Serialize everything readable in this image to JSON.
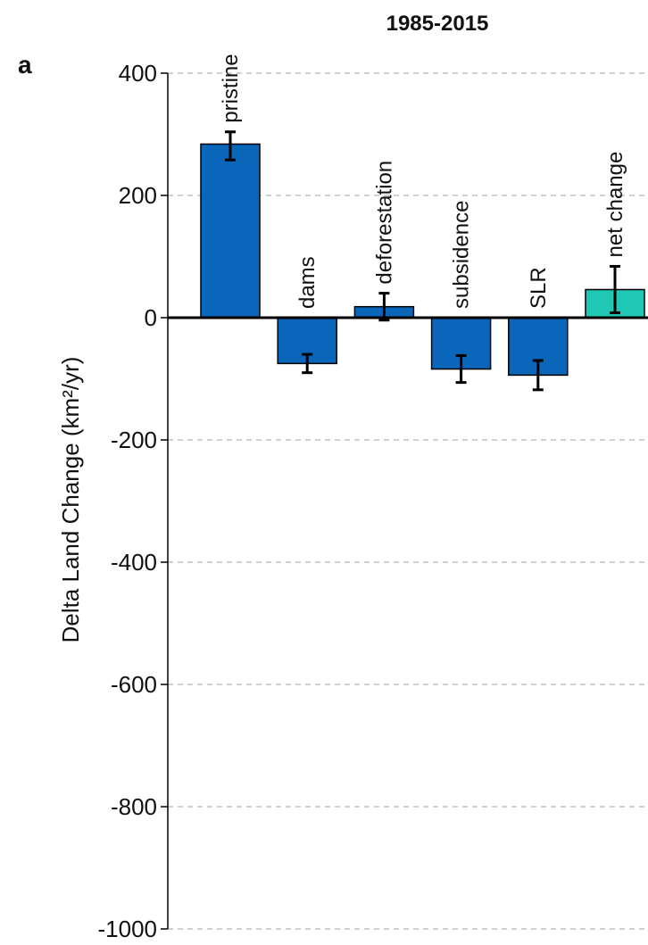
{
  "chart_data": {
    "type": "bar",
    "panel_label": "a",
    "title": "1985-2015",
    "xlabel": "",
    "ylabel": "Delta Land Change (km²/yr)",
    "ylim": [
      -1000,
      400
    ],
    "yticks": [
      400,
      200,
      0,
      -200,
      -400,
      -600,
      -800,
      -1000
    ],
    "ytick_labels": [
      "400",
      "200",
      "0",
      "-200",
      "-400",
      "-600",
      "-800",
      "-1000"
    ],
    "grid": true,
    "categories": [
      "pristine",
      "dams",
      "deforestation",
      "subsidence",
      "SLR",
      "net change"
    ],
    "values": [
      284,
      -75,
      18,
      -84,
      -94,
      46
    ],
    "error_low": [
      258,
      -90,
      -4,
      -106,
      -118,
      8
    ],
    "error_high": [
      304,
      -60,
      40,
      -62,
      -70,
      84
    ],
    "colors": [
      "#0a66b8",
      "#0a66b8",
      "#0a66b8",
      "#0a66b8",
      "#0a66b8",
      "#1ec8b4"
    ]
  }
}
